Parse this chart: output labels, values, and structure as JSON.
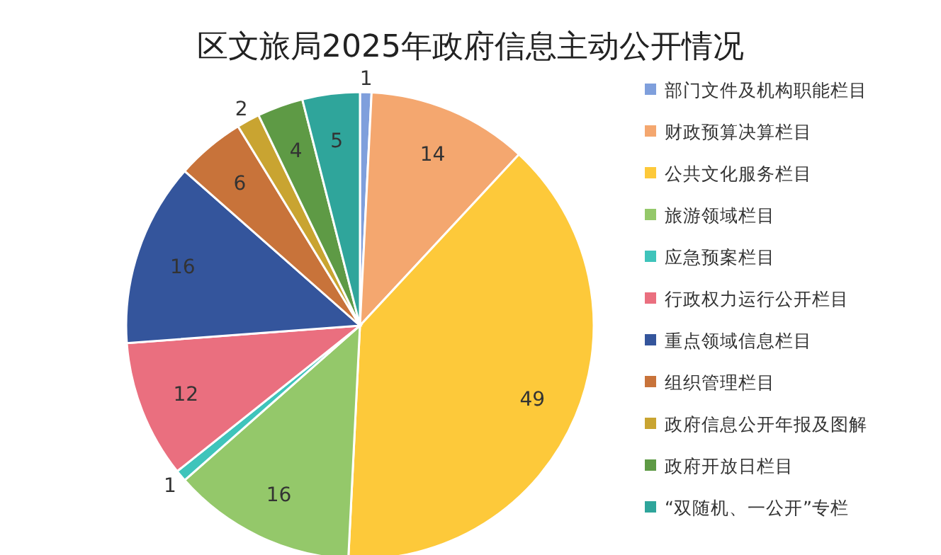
{
  "chart_data": {
    "type": "pie",
    "title": "区文旅局2025年政府信息主动公开情况",
    "categories": [
      "部门文件及机构职能栏目",
      "财政预算决算栏目",
      "公共文化服务栏目",
      "旅游领域栏目",
      "应急预案栏目",
      "行政权力运行公开栏目",
      "重点领域信息栏目",
      "组织管理栏目",
      "政府信息公开年报及图解",
      "政府开放日栏目",
      "“双随机、一公开”专栏"
    ],
    "values": [
      1,
      14,
      49,
      16,
      1,
      12,
      16,
      6,
      2,
      4,
      5
    ],
    "colors": [
      "#7f9fdc",
      "#f4a76f",
      "#fdc93a",
      "#94c86a",
      "#3fc4bb",
      "#ea6f7f",
      "#34559c",
      "#c8733a",
      "#c9a431",
      "#5e9a45",
      "#2fa59b"
    ],
    "data_labels": true,
    "legend": "right"
  }
}
